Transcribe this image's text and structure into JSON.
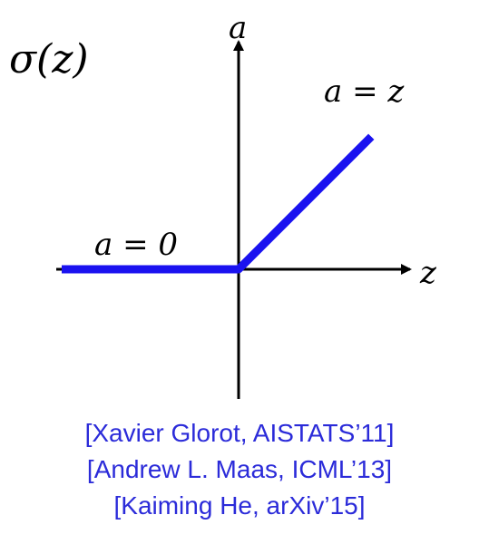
{
  "function_label": "σ(z)",
  "axis": {
    "x_label": "z",
    "y_label": "a"
  },
  "region_labels": {
    "negative": "a = 0",
    "positive": "a = z"
  },
  "colors": {
    "curve": "#1a12f0",
    "axes": "#000000",
    "refs": "#2b2bd9"
  },
  "chart_data": {
    "type": "line",
    "series": [
      {
        "x": [
          -1,
          0,
          0.75
        ],
        "y": [
          0,
          0,
          0.75
        ]
      }
    ],
    "xlim": [
      -1,
      1
    ],
    "ylim": [
      -0.75,
      1.2
    ],
    "grid": false
  },
  "references": [
    "[Xavier Glorot, AISTATS’11]",
    "[Andrew L. Maas, ICML’13]",
    "[Kaiming He, arXiv’15]"
  ]
}
